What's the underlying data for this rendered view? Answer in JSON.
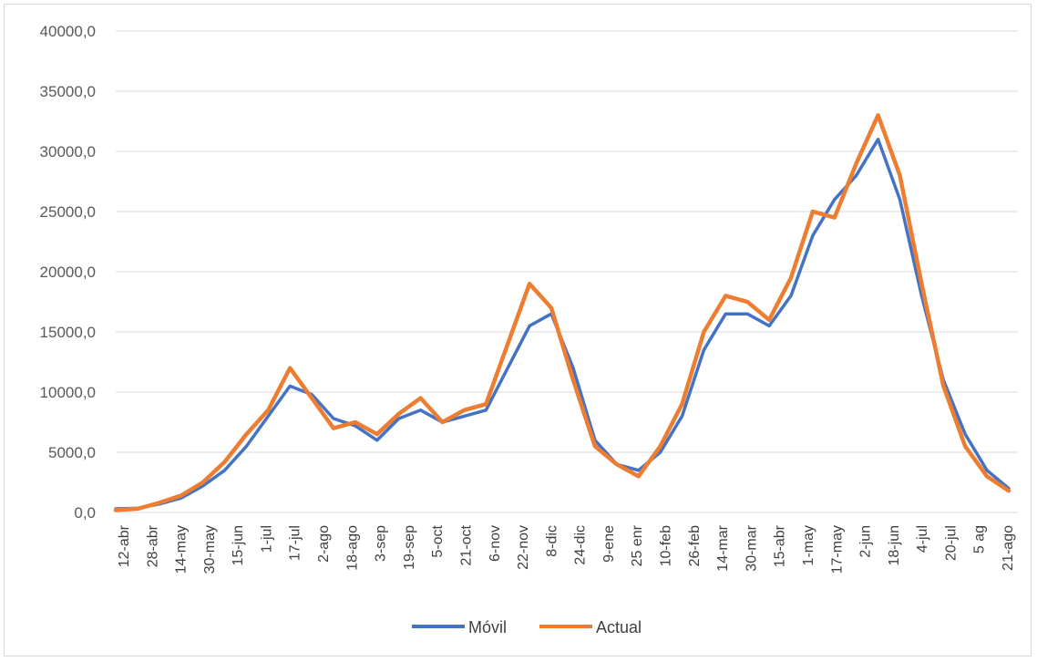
{
  "chart_data": {
    "type": "line",
    "title": "",
    "xlabel": "",
    "ylabel": "",
    "ylim": [
      0,
      40000
    ],
    "y_ticks": [
      "0,0",
      "5000,0",
      "10000,0",
      "15000,0",
      "20000,0",
      "25000,0",
      "30000,0",
      "35000,0",
      "40000,0"
    ],
    "x_tick_labels": [
      "12-abr",
      "28-abr",
      "14-may",
      "30-may",
      "15-jun",
      "1-jul",
      "17-jul",
      "2-ago",
      "18-ago",
      "3-sep",
      "19-sep",
      "5-oct",
      "21-oct",
      "6-nov",
      "22-nov",
      "8-dic",
      "24-dic",
      "9-ene",
      "25 enr",
      "10-feb",
      "26-feb",
      "14-mar",
      "30-mar",
      "15-abr",
      "1-may",
      "17-may",
      "2-jun",
      "18-jun",
      "4-jul",
      "20-jul",
      "5 ag",
      "21-ago"
    ],
    "grid": "horizontal",
    "legend_position": "bottom",
    "series": [
      {
        "name": "Móvil",
        "color": "#4472c4",
        "values": [
          300,
          350,
          700,
          1200,
          2200,
          3500,
          5500,
          8000,
          10500,
          9800,
          7800,
          7200,
          6000,
          7800,
          8500,
          7500,
          8000,
          8500,
          12000,
          15500,
          16500,
          12000,
          6000,
          4000,
          3500,
          5000,
          8000,
          13500,
          16500,
          16500,
          15500,
          18000,
          23000,
          26000,
          28000,
          31000,
          26000,
          18000,
          11000,
          6500,
          3500,
          2000
        ]
      },
      {
        "name": "Actual",
        "color": "#ed7d31",
        "values": [
          200,
          300,
          800,
          1400,
          2500,
          4200,
          6500,
          8500,
          12000,
          9500,
          7000,
          7500,
          6500,
          8200,
          9500,
          7500,
          8500,
          9000,
          14000,
          19000,
          17000,
          11000,
          5500,
          4000,
          3000,
          5500,
          9000,
          15000,
          18000,
          17500,
          16000,
          19500,
          25000,
          24500,
          29000,
          33000,
          28000,
          19000,
          10500,
          5500,
          3000,
          1800
        ]
      }
    ]
  }
}
